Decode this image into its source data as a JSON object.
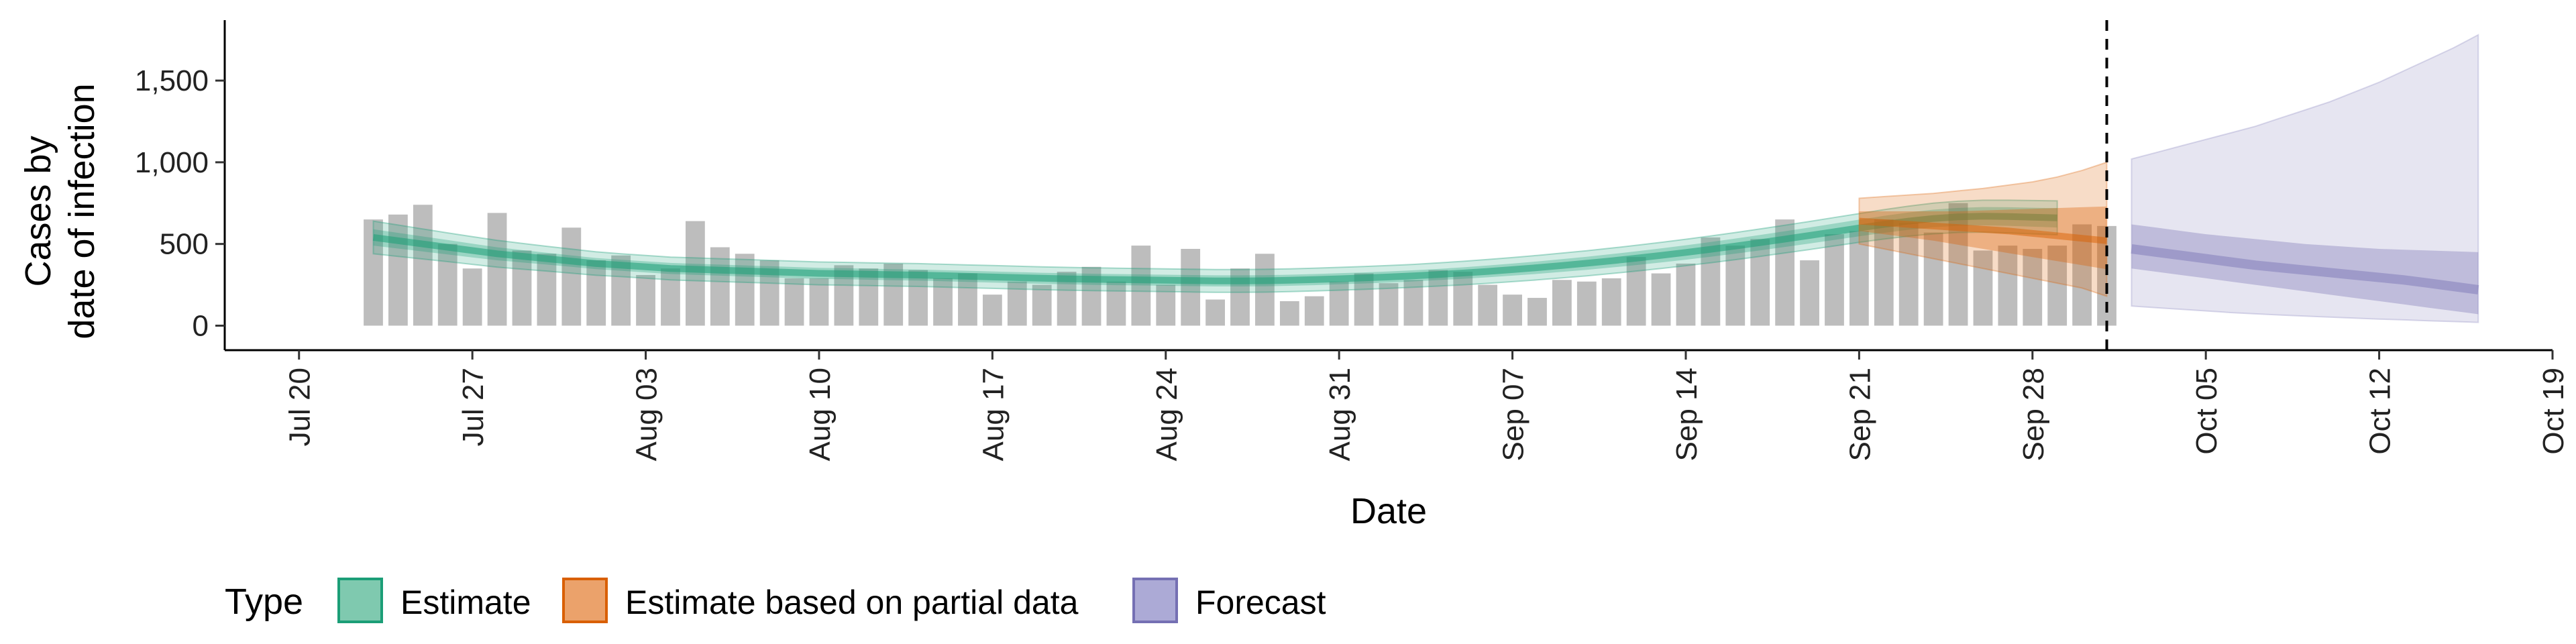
{
  "chart_data": {
    "type": "bar",
    "xlabel": "Date",
    "ylabel_lines": [
      "Cases by",
      "date of infection"
    ],
    "ylim": [
      -150,
      1870
    ],
    "yticks": [
      0,
      500,
      1000,
      1500
    ],
    "ytick_labels": [
      "0",
      "500",
      "1,000",
      "1,500"
    ],
    "x_range": [
      "2020-07-17",
      "2020-10-19"
    ],
    "xticks": [
      "2020-07-20",
      "2020-07-27",
      "2020-08-03",
      "2020-08-10",
      "2020-08-17",
      "2020-08-24",
      "2020-08-31",
      "2020-09-07",
      "2020-09-14",
      "2020-09-21",
      "2020-09-28",
      "2020-10-05",
      "2020-10-12",
      "2020-10-19"
    ],
    "xtick_labels": [
      "Jul 20",
      "Jul 27",
      "Aug 03",
      "Aug 10",
      "Aug 17",
      "Aug 24",
      "Aug 31",
      "Sep 07",
      "Sep 14",
      "Sep 21",
      "Sep 28",
      "Oct 05",
      "Oct 12",
      "Oct 19"
    ],
    "forecast_date": "2020-10-01",
    "bars": {
      "start_date": "2020-07-23",
      "values": [
        650,
        680,
        740,
        500,
        350,
        690,
        460,
        440,
        600,
        400,
        430,
        310,
        350,
        640,
        480,
        440,
        400,
        290,
        290,
        370,
        350,
        380,
        340,
        290,
        320,
        190,
        270,
        250,
        330,
        360,
        270,
        490,
        250,
        470,
        160,
        350,
        440,
        150,
        180,
        270,
        320,
        260,
        280,
        340,
        330,
        250,
        190,
        170,
        280,
        270,
        290,
        420,
        320,
        380,
        540,
        490,
        530,
        650,
        400,
        560,
        580,
        650,
        630,
        570,
        750,
        460,
        490,
        470,
        490,
        620,
        610
      ]
    },
    "estimate": {
      "start_date": "2020-07-23",
      "median": [
        540,
        520,
        500,
        480,
        460,
        440,
        425,
        410,
        395,
        380,
        370,
        360,
        350,
        345,
        340,
        335,
        330,
        325,
        320,
        318,
        315,
        312,
        310,
        306,
        302,
        298,
        294,
        290,
        287,
        284,
        282,
        280,
        278,
        276,
        274,
        274,
        275,
        278,
        282,
        287,
        292,
        298,
        305,
        313,
        322,
        332,
        343,
        355,
        368,
        382,
        397,
        413,
        430,
        448,
        467,
        487,
        508,
        530,
        552,
        575,
        598,
        620,
        640,
        656,
        666,
        670,
        668,
        664,
        660
      ],
      "inner_half_width": [
        50,
        48,
        46,
        44,
        42,
        40,
        38,
        36,
        35,
        34,
        34,
        34,
        34,
        34,
        34,
        34,
        34,
        34,
        34,
        34,
        34,
        34,
        34,
        34,
        34,
        34,
        34,
        34,
        34,
        34,
        34,
        34,
        34,
        34,
        34,
        34,
        34,
        34,
        34,
        34,
        34,
        34,
        34,
        34,
        35,
        36,
        37,
        38,
        39,
        40,
        41,
        42,
        43,
        44,
        45,
        46,
        47,
        48,
        49,
        50,
        51,
        52,
        53,
        54,
        55,
        56,
        57,
        58,
        59
      ],
      "outer_half_width": [
        100,
        96,
        92,
        88,
        85,
        82,
        79,
        76,
        74,
        72,
        70,
        70,
        70,
        70,
        70,
        70,
        70,
        70,
        70,
        70,
        70,
        70,
        70,
        70,
        70,
        70,
        70,
        70,
        70,
        70,
        70,
        70,
        70,
        70,
        70,
        70,
        70,
        70,
        70,
        70,
        70,
        70,
        70,
        71,
        72,
        73,
        74,
        75,
        76,
        77,
        78,
        79,
        80,
        81,
        82,
        83,
        84,
        85,
        86,
        87,
        88,
        90,
        92,
        94,
        96,
        98,
        100,
        102,
        104
      ]
    },
    "partial": {
      "start_date": "2020-09-21",
      "median": [
        640,
        630,
        620,
        610,
        600,
        590,
        580,
        565,
        550,
        535,
        520
      ],
      "inner_low": [
        580,
        560,
        540,
        520,
        495,
        470,
        445,
        420,
        395,
        370,
        345
      ],
      "inner_high": [
        700,
        700,
        700,
        700,
        700,
        705,
        710,
        715,
        720,
        725,
        730
      ],
      "outer_low": [
        500,
        470,
        440,
        410,
        380,
        350,
        320,
        290,
        260,
        230,
        180
      ],
      "outer_high": [
        780,
        790,
        800,
        810,
        825,
        840,
        860,
        880,
        910,
        950,
        1000
      ]
    },
    "forecast": {
      "start_date": "2020-10-02",
      "median": [
        470,
        450,
        430,
        410,
        390,
        370,
        355,
        340,
        325,
        310,
        295,
        280,
        260,
        240,
        220
      ],
      "inner_low": [
        350,
        330,
        310,
        290,
        270,
        250,
        230,
        210,
        190,
        170,
        150,
        130,
        110,
        90,
        70
      ],
      "inner_high": [
        620,
        600,
        580,
        560,
        545,
        530,
        515,
        500,
        490,
        480,
        470,
        465,
        460,
        455,
        450
      ],
      "outer_low": [
        120,
        110,
        100,
        90,
        80,
        72,
        65,
        58,
        52,
        46,
        40,
        35,
        30,
        25,
        20
      ],
      "outer_high": [
        1020,
        1060,
        1100,
        1140,
        1180,
        1220,
        1270,
        1320,
        1370,
        1430,
        1490,
        1560,
        1630,
        1700,
        1780
      ]
    },
    "colors": {
      "bars": "#bdbdbd",
      "estimate": "#1b9e77",
      "estimate_partial": "#d95f02",
      "forecast": "#7570b3"
    },
    "legend": {
      "title": "Type",
      "placement": "bottom",
      "entries": [
        {
          "label": "Estimate",
          "fill": "#7fc9af",
          "stroke": "#1b9e77"
        },
        {
          "label": "Estimate based on partial data",
          "fill": "#eba26b",
          "stroke": "#d95f02"
        },
        {
          "label": "Forecast",
          "fill": "#acaad6",
          "stroke": "#7570b3"
        }
      ]
    }
  }
}
